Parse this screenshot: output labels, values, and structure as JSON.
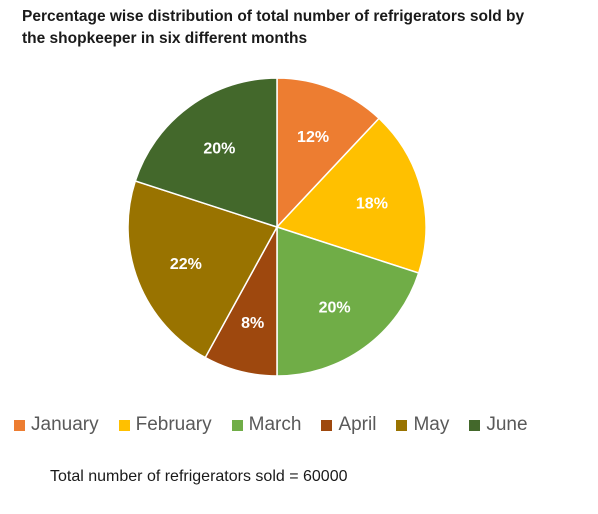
{
  "chart_data": {
    "type": "pie",
    "title_lines": [
      "Percentage wise distribution of total number of refrigerators sold by",
      "the shopkeeper in six different months"
    ],
    "categories": [
      "January",
      "February",
      "March",
      "April",
      "May",
      "June"
    ],
    "values": [
      12,
      18,
      20,
      8,
      22,
      20
    ],
    "labels": [
      "12%",
      "18%",
      "20%",
      "8%",
      "22%",
      "20%"
    ],
    "colors": [
      "#ED7D31",
      "#FFC000",
      "#70AD47",
      "#9E480E",
      "#997300",
      "#43682B"
    ],
    "legend_position": "bottom",
    "start_angle": "12 o'clock",
    "direction": "clockwise",
    "note": "Total number of refrigerators sold = 60000"
  }
}
